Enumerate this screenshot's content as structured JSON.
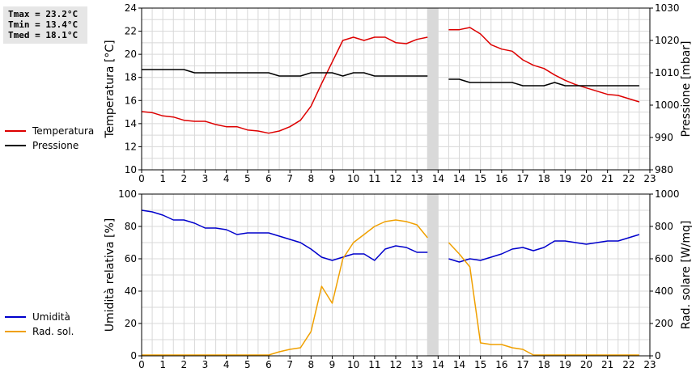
{
  "stats": [
    "Tmax = 23.2°C",
    "Tmin = 13.4°C",
    "Tmed = 18.1°C"
  ],
  "chart_data": [
    {
      "type": "line",
      "ylabel": "Temperatura [°C]",
      "y2label": "Pressione [mbar]",
      "ylim": [
        10,
        25
      ],
      "y2lim": [
        980,
        1030
      ],
      "xlim": [
        0,
        24
      ],
      "x_ticks": [
        "0",
        "1",
        "2",
        "3",
        "4",
        "5",
        "6",
        "7",
        "8",
        "9",
        "10",
        "11",
        "12",
        "13",
        "14",
        "14",
        "15",
        "16",
        "17",
        "18",
        "19",
        "20",
        "21",
        "22",
        "23"
      ],
      "y_ticks": [
        "10",
        "12",
        "14",
        "16",
        "18",
        "20",
        "22",
        "24"
      ],
      "y2_ticks": [
        "980",
        "990",
        "1000",
        "1010",
        "1020",
        "1030"
      ],
      "gap": [
        13.5,
        14
      ],
      "series": [
        {
          "name": "Temperatura",
          "color": "#dd0000",
          "axis": "left",
          "segments": [
            [
              [
                0,
                15.4
              ],
              [
                0.5,
                15.3
              ],
              [
                1,
                15.0
              ],
              [
                1.5,
                14.9
              ],
              [
                2,
                14.6
              ],
              [
                2.5,
                14.5
              ],
              [
                3,
                14.5
              ],
              [
                3.5,
                14.2
              ],
              [
                4,
                14.0
              ],
              [
                4.5,
                14.0
              ],
              [
                5,
                13.7
              ],
              [
                5.5,
                13.6
              ],
              [
                6,
                13.4
              ],
              [
                6.5,
                13.6
              ],
              [
                7,
                14.0
              ],
              [
                7.5,
                14.6
              ],
              [
                8,
                15.9
              ],
              [
                8.5,
                18.0
              ],
              [
                9,
                20.0
              ],
              [
                9.5,
                22.0
              ],
              [
                10,
                22.3
              ],
              [
                10.5,
                22.0
              ],
              [
                11,
                22.3
              ],
              [
                11.5,
                22.3
              ],
              [
                12,
                21.8
              ],
              [
                12.5,
                21.7
              ],
              [
                13,
                22.1
              ],
              [
                13.5,
                22.3
              ]
            ],
            [
              [
                14.5,
                23.0
              ],
              [
                15,
                23.0
              ],
              [
                15.5,
                23.2
              ],
              [
                16,
                22.6
              ],
              [
                16.5,
                21.6
              ],
              [
                17,
                21.2
              ],
              [
                17.5,
                21.0
              ],
              [
                18,
                20.2
              ],
              [
                18.5,
                19.7
              ],
              [
                19,
                19.4
              ],
              [
                19.5,
                18.8
              ],
              [
                20,
                18.3
              ],
              [
                20.5,
                17.9
              ],
              [
                21,
                17.6
              ],
              [
                21.5,
                17.3
              ],
              [
                22,
                17.0
              ],
              [
                22.5,
                16.9
              ],
              [
                23,
                16.6
              ],
              [
                23.5,
                16.3
              ]
            ]
          ]
        },
        {
          "name": "Pressione",
          "color": "#000000",
          "axis": "right",
          "segments": [
            [
              [
                0,
                1011
              ],
              [
                1,
                1011
              ],
              [
                2,
                1011
              ],
              [
                2.5,
                1010
              ],
              [
                3,
                1010
              ],
              [
                4,
                1010
              ],
              [
                5,
                1010
              ],
              [
                6,
                1010
              ],
              [
                6.5,
                1009
              ],
              [
                7,
                1009
              ],
              [
                7.5,
                1009
              ],
              [
                8,
                1010
              ],
              [
                8.5,
                1010
              ],
              [
                9,
                1010
              ],
              [
                9.5,
                1009
              ],
              [
                10,
                1010
              ],
              [
                10.5,
                1010
              ],
              [
                11,
                1009
              ],
              [
                12,
                1009
              ],
              [
                13,
                1009
              ],
              [
                13.5,
                1009
              ]
            ],
            [
              [
                14.5,
                1008
              ],
              [
                15,
                1008
              ],
              [
                15.5,
                1007
              ],
              [
                16,
                1007
              ],
              [
                17,
                1007
              ],
              [
                17.5,
                1007
              ],
              [
                18,
                1006
              ],
              [
                19,
                1006
              ],
              [
                19.5,
                1007
              ],
              [
                20,
                1006
              ],
              [
                21,
                1006
              ],
              [
                22,
                1006
              ],
              [
                23,
                1006
              ],
              [
                23.5,
                1006
              ]
            ]
          ]
        }
      ]
    },
    {
      "type": "line",
      "ylabel": "Umidità relativa [%]",
      "y2label": "Rad. solare [W/mq]",
      "ylim": [
        0,
        100
      ],
      "y2lim": [
        0,
        1000
      ],
      "xlim": [
        0,
        24
      ],
      "x_ticks": [
        "0",
        "1",
        "2",
        "3",
        "4",
        "5",
        "6",
        "7",
        "8",
        "9",
        "10",
        "11",
        "12",
        "13",
        "14",
        "14",
        "15",
        "16",
        "17",
        "18",
        "19",
        "20",
        "21",
        "22",
        "23"
      ],
      "y_ticks": [
        "0",
        "20",
        "40",
        "60",
        "80",
        "100"
      ],
      "y2_ticks": [
        "0",
        "200",
        "400",
        "600",
        "800",
        "1000"
      ],
      "gap": [
        13.5,
        14
      ],
      "series": [
        {
          "name": "Umidità",
          "color": "#0000cc",
          "axis": "left",
          "segments": [
            [
              [
                0,
                90
              ],
              [
                0.5,
                89
              ],
              [
                1,
                87
              ],
              [
                1.5,
                84
              ],
              [
                2,
                84
              ],
              [
                2.5,
                82
              ],
              [
                3,
                79
              ],
              [
                3.5,
                79
              ],
              [
                4,
                78
              ],
              [
                4.5,
                75
              ],
              [
                5,
                76
              ],
              [
                5.5,
                76
              ],
              [
                6,
                76
              ],
              [
                6.5,
                74
              ],
              [
                7,
                72
              ],
              [
                7.5,
                70
              ],
              [
                8,
                66
              ],
              [
                8.5,
                61
              ],
              [
                9,
                59
              ],
              [
                9.5,
                61
              ],
              [
                10,
                63
              ],
              [
                10.5,
                63
              ],
              [
                11,
                59
              ],
              [
                11.5,
                66
              ],
              [
                12,
                68
              ],
              [
                12.5,
                67
              ],
              [
                13,
                64
              ],
              [
                13.5,
                64
              ]
            ],
            [
              [
                14.5,
                60
              ],
              [
                15,
                58
              ],
              [
                15.5,
                60
              ],
              [
                16,
                59
              ],
              [
                16.5,
                61
              ],
              [
                17,
                63
              ],
              [
                17.5,
                66
              ],
              [
                18,
                67
              ],
              [
                18.5,
                65
              ],
              [
                19,
                67
              ],
              [
                19.5,
                71
              ],
              [
                20,
                71
              ],
              [
                20.5,
                70
              ],
              [
                21,
                69
              ],
              [
                21.5,
                70
              ],
              [
                22,
                71
              ],
              [
                22.5,
                71
              ],
              [
                23,
                73
              ],
              [
                23.5,
                75
              ]
            ]
          ]
        },
        {
          "name": "Rad. sol.",
          "color": "#f0a000",
          "axis": "right",
          "segments": [
            [
              [
                0,
                5
              ],
              [
                1,
                5
              ],
              [
                2,
                5
              ],
              [
                3,
                5
              ],
              [
                4,
                5
              ],
              [
                5,
                5
              ],
              [
                6,
                5
              ],
              [
                6.5,
                25
              ],
              [
                7,
                40
              ],
              [
                7.5,
                50
              ],
              [
                8,
                150
              ],
              [
                8.5,
                430
              ],
              [
                9,
                325
              ],
              [
                9.5,
                600
              ],
              [
                10,
                700
              ],
              [
                10.5,
                750
              ],
              [
                11,
                800
              ],
              [
                11.5,
                830
              ],
              [
                12,
                840
              ],
              [
                12.5,
                830
              ],
              [
                13,
                810
              ],
              [
                13.5,
                730
              ]
            ],
            [
              [
                14.5,
                700
              ],
              [
                15,
                630
              ],
              [
                15.5,
                550
              ],
              [
                16,
                80
              ],
              [
                16.5,
                70
              ],
              [
                17,
                70
              ],
              [
                17.5,
                50
              ],
              [
                18,
                40
              ],
              [
                18.5,
                5
              ],
              [
                19,
                5
              ],
              [
                20,
                5
              ],
              [
                21,
                5
              ],
              [
                22,
                5
              ],
              [
                23,
                5
              ],
              [
                23.5,
                5
              ]
            ]
          ]
        }
      ]
    }
  ]
}
